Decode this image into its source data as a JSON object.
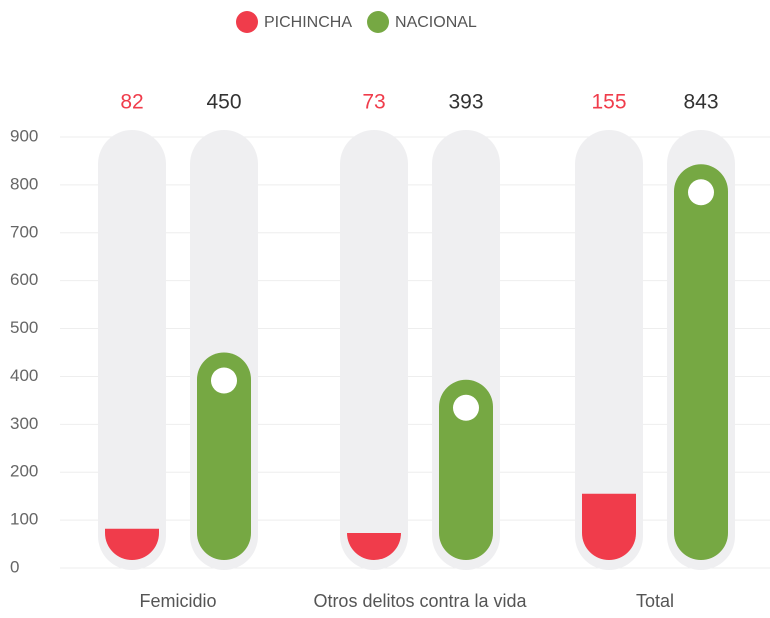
{
  "chart_data": {
    "type": "bar",
    "categories": [
      "Femicidio",
      "Otros delitos contra la vida",
      "Total"
    ],
    "series": [
      {
        "name": "PICHINCHA",
        "color": "#f03c4b",
        "values": [
          82,
          73,
          155
        ]
      },
      {
        "name": "NACIONAL",
        "color": "#76a843",
        "values": [
          450,
          393,
          843
        ]
      }
    ],
    "ylim": [
      0,
      900
    ],
    "yticks": [
      0,
      100,
      200,
      300,
      400,
      500,
      600,
      700,
      800,
      900
    ],
    "grid": true,
    "legend": "top"
  }
}
